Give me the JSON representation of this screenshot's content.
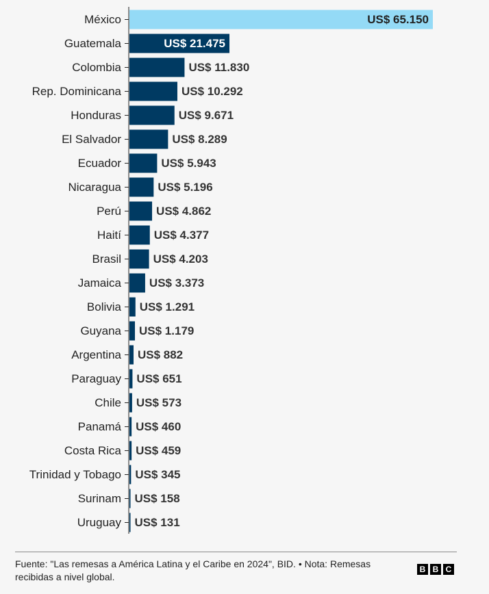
{
  "chart_data": {
    "type": "bar",
    "orientation": "horizontal",
    "categories": [
      "México",
      "Guatemala",
      "Colombia",
      "Rep. Dominicana",
      "Honduras",
      "El Salvador",
      "Ecuador",
      "Nicaragua",
      "Perú",
      "Haití",
      "Brasil",
      "Jamaica",
      "Bolivia",
      "Guyana",
      "Argentina",
      "Paraguay",
      "Chile",
      "Panamá",
      "Costa Rica",
      "Trinidad y Tobago",
      "Surinam",
      "Uruguay"
    ],
    "values": [
      65150,
      21475,
      11830,
      10292,
      9671,
      8289,
      5943,
      5196,
      4862,
      4377,
      4203,
      3373,
      1291,
      1179,
      882,
      651,
      573,
      460,
      459,
      345,
      158,
      131
    ],
    "value_labels": [
      "US$ 65.150",
      "US$ 21.475",
      "US$ 11.830",
      "US$ 10.292",
      "US$ 9.671",
      "US$ 8.289",
      "US$ 5.943",
      "US$ 5.196",
      "US$ 4.862",
      "US$ 4.377",
      "US$ 4.203",
      "US$ 3.373",
      "US$ 1.291",
      "US$ 1.179",
      "US$ 882",
      "US$ 651",
      "US$ 573",
      "US$ 460",
      "US$ 459",
      "US$ 345",
      "US$ 158",
      "US$ 131"
    ],
    "highlight_index": 0,
    "colors": {
      "bar": "#003a62",
      "highlight": "#94daf6",
      "axis": "#222222",
      "label_inside_dark": "#ffffff",
      "label_inside_light": "#222222",
      "label_outside": "#333333"
    },
    "xlim": [
      0,
      65150
    ],
    "title": "",
    "xlabel": "",
    "ylabel": "",
    "grid": false,
    "legend": "none"
  },
  "footer": {
    "source_note": "Fuente: \"Las remesas a América Latina y el Caribe en 2024\", BID. • Nota: Remesas recibidas a nivel global.",
    "logo_letters": [
      "B",
      "B",
      "C"
    ]
  }
}
